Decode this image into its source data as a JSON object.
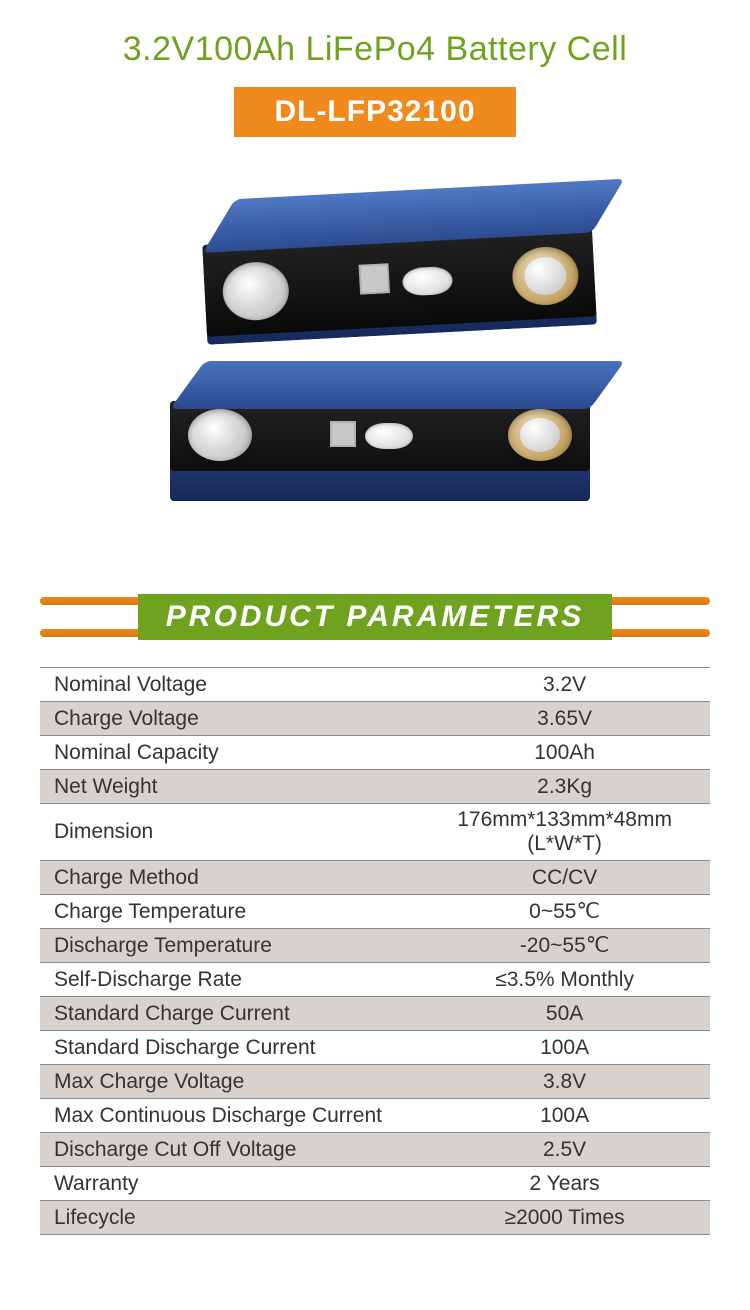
{
  "colors": {
    "title": "#6fa21f",
    "badge_bg": "#f08a1d",
    "badge_text": "#ffffff",
    "section_stripe": "#f08a1d",
    "section_label_bg": "#6fa21f",
    "section_label_text": "#ffffff",
    "table_text": "#333333",
    "row_light": "#ffffff",
    "row_dark": "#d7d2cd",
    "row_border": "#8a8a8a",
    "cell_blue_light": "#3a5fa8",
    "cell_blue_dark": "#1c2f5e",
    "cell_black": "#1a1a1a"
  },
  "header": {
    "title": "3.2V100Ah LiFePo4 Battery Cell",
    "model": "DL-LFP32100"
  },
  "section": {
    "label": "PRODUCT PARAMETERS"
  },
  "parameters": {
    "rows": [
      {
        "label": "Nominal Voltage",
        "value": "3.2V"
      },
      {
        "label": "Charge Voltage",
        "value": "3.65V"
      },
      {
        "label": "Nominal Capacity",
        "value": "100Ah"
      },
      {
        "label": "Net Weight",
        "value": "2.3Kg"
      },
      {
        "label": "Dimension",
        "value": "176mm*133mm*48mm (L*W*T)"
      },
      {
        "label": "Charge Method",
        "value": "CC/CV"
      },
      {
        "label": "Charge Temperature",
        "value": "0~55℃"
      },
      {
        "label": "Discharge Temperature",
        "value": "-20~55℃"
      },
      {
        "label": "Self-Discharge Rate",
        "value": "≤3.5% Monthly"
      },
      {
        "label": "Standard Charge Current",
        "value": "50A"
      },
      {
        "label": "Standard Discharge Current",
        "value": "100A"
      },
      {
        "label": "Max Charge Voltage",
        "value": "3.8V"
      },
      {
        "label": "Max Continuous Discharge Current",
        "value": "100A"
      },
      {
        "label": "Discharge Cut Off Voltage",
        "value": "2.5V"
      },
      {
        "label": "Warranty",
        "value": "2 Years"
      },
      {
        "label": "Lifecycle",
        "value": "≥2000 Times"
      }
    ]
  }
}
